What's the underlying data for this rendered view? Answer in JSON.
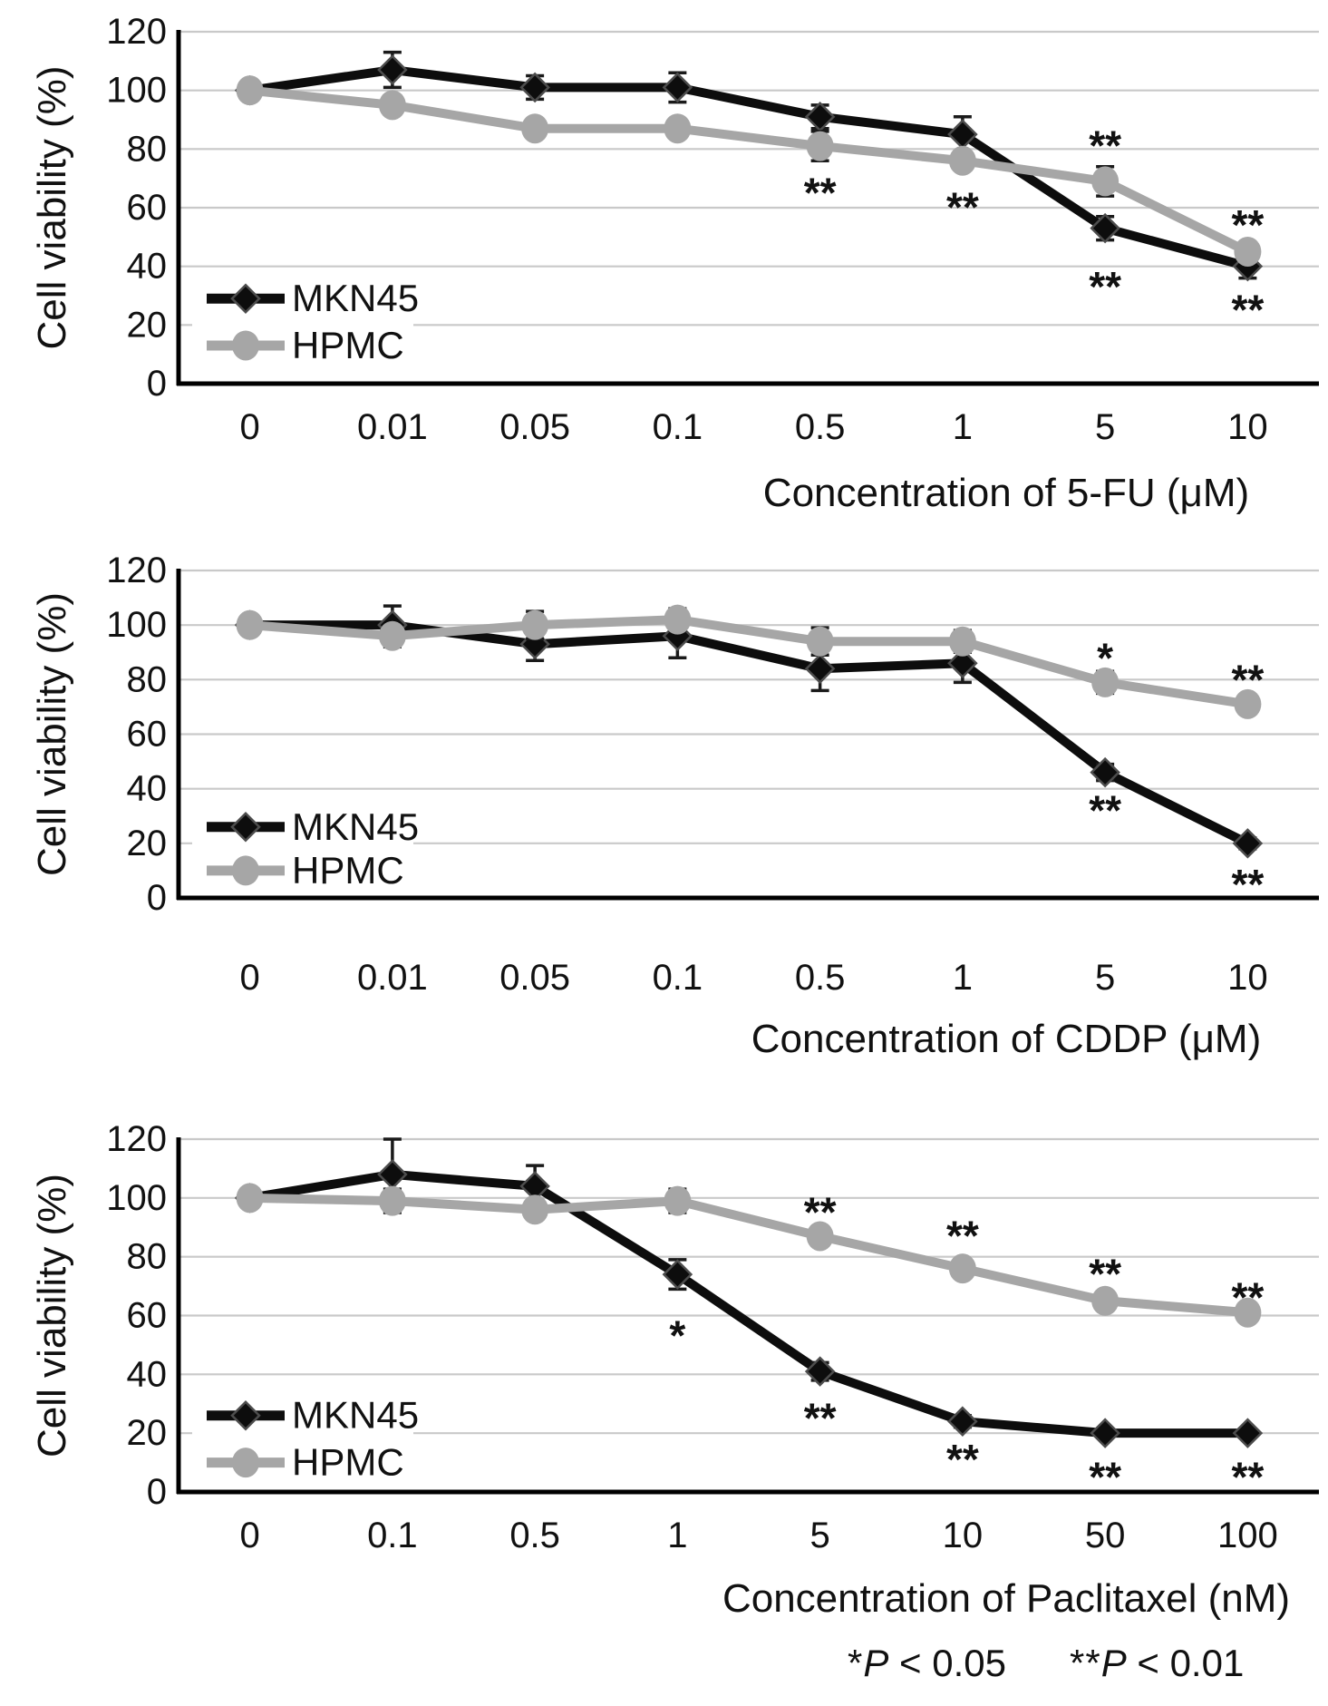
{
  "figure": {
    "background": "#ffffff",
    "colors": {
      "axis": "#000000",
      "gridline": "#c9c9c9",
      "text": "#111111",
      "mkn45": "#0d0d0d",
      "hpmc": "#a6a6a6",
      "error_bar": "#1a1a1a"
    }
  },
  "footnote": {
    "p005": {
      "stars": "*",
      "p": "P",
      "rest": " < 0.05"
    },
    "p001": {
      "stars": "**",
      "p": "P",
      "rest": " < 0.01"
    }
  },
  "chart_data": [
    {
      "type": "line",
      "title": "",
      "xlabel": "Concentration of 5-FU (μM)",
      "ylabel": "Cell viability (%)",
      "ylim": [
        0,
        120
      ],
      "ytick_step": 20,
      "yticks": [
        0,
        20,
        40,
        60,
        80,
        100,
        120
      ],
      "grid": true,
      "legend_position": "inside-bottom-left",
      "categories": [
        "0",
        "0.01",
        "0.05",
        "0.1",
        "0.5",
        "1",
        "5",
        "10"
      ],
      "series": [
        {
          "name": "MKN45",
          "marker": "diamond",
          "color": "#0d0d0d",
          "values": [
            100,
            107,
            101,
            101,
            91,
            85,
            53,
            40
          ],
          "errors": [
            0,
            6,
            4,
            5,
            4,
            6,
            4,
            4
          ]
        },
        {
          "name": "HPMC",
          "marker": "circle",
          "color": "#a6a6a6",
          "values": [
            100,
            95,
            87,
            87,
            81,
            76,
            69,
            45
          ],
          "errors": [
            0,
            0,
            0,
            0,
            5,
            0,
            5,
            3
          ]
        }
      ],
      "significance": [
        {
          "category": "0.5",
          "y": 67,
          "label": "**"
        },
        {
          "category": "1",
          "y": 62,
          "label": "**"
        },
        {
          "category": "5",
          "y": 83,
          "label": "**"
        },
        {
          "category": "5",
          "y": 35,
          "label": "**"
        },
        {
          "category": "10",
          "y": 56,
          "label": "**"
        },
        {
          "category": "10",
          "y": 27,
          "label": "**"
        }
      ]
    },
    {
      "type": "line",
      "title": "",
      "xlabel": "Concentration of CDDP (μM)",
      "ylabel": "Cell viability (%)",
      "ylim": [
        0,
        120
      ],
      "ytick_step": 20,
      "yticks": [
        0,
        20,
        40,
        60,
        80,
        100,
        120
      ],
      "grid": true,
      "legend_position": "inside-bottom-left",
      "categories": [
        "0",
        "0.01",
        "0.05",
        "0.1",
        "0.5",
        "1",
        "5",
        "10"
      ],
      "series": [
        {
          "name": "MKN45",
          "marker": "diamond",
          "color": "#0d0d0d",
          "values": [
            100,
            100,
            93,
            96,
            84,
            86,
            46,
            20
          ],
          "errors": [
            0,
            7,
            6,
            8,
            8,
            7,
            3,
            2
          ]
        },
        {
          "name": "HPMC",
          "marker": "circle",
          "color": "#a6a6a6",
          "values": [
            100,
            96,
            100,
            102,
            94,
            94,
            79,
            71
          ],
          "errors": [
            0,
            4,
            5,
            4,
            5,
            4,
            4,
            2
          ]
        }
      ],
      "significance": [
        {
          "category": "5",
          "y": 90,
          "label": "*"
        },
        {
          "category": "10",
          "y": 82,
          "label": "**"
        },
        {
          "category": "5",
          "y": 34,
          "label": "**"
        },
        {
          "category": "10",
          "y": 7,
          "label": "**"
        }
      ]
    },
    {
      "type": "line",
      "title": "",
      "xlabel": "Concentration of Paclitaxel (nM)",
      "ylabel": "Cell viability (%)",
      "ylim": [
        0,
        120
      ],
      "ytick_step": 20,
      "yticks": [
        0,
        20,
        40,
        60,
        80,
        100,
        120
      ],
      "grid": true,
      "legend_position": "inside-bottom-left",
      "categories": [
        "0",
        "0.1",
        "0.5",
        "1",
        "5",
        "10",
        "50",
        "100"
      ],
      "series": [
        {
          "name": "MKN45",
          "marker": "diamond",
          "color": "#0d0d0d",
          "values": [
            100,
            108,
            104,
            74,
            41,
            24,
            20,
            20
          ],
          "errors": [
            0,
            12,
            7,
            5,
            3,
            2,
            0,
            0
          ]
        },
        {
          "name": "HPMC",
          "marker": "circle",
          "color": "#a6a6a6",
          "values": [
            100,
            99,
            96,
            99,
            87,
            76,
            65,
            61
          ],
          "errors": [
            0,
            4,
            2,
            4,
            2,
            2,
            3,
            3
          ]
        }
      ],
      "significance": [
        {
          "category": "5",
          "y": 97,
          "label": "**"
        },
        {
          "category": "10",
          "y": 89,
          "label": "**"
        },
        {
          "category": "50",
          "y": 76,
          "label": "**"
        },
        {
          "category": "100",
          "y": 68,
          "label": "**"
        },
        {
          "category": "1",
          "y": 55,
          "label": "*"
        },
        {
          "category": "5",
          "y": 27,
          "label": "**"
        },
        {
          "category": "10",
          "y": 13,
          "label": "**"
        },
        {
          "category": "50",
          "y": 7,
          "label": "**"
        },
        {
          "category": "100",
          "y": 7,
          "label": "**"
        }
      ]
    }
  ]
}
